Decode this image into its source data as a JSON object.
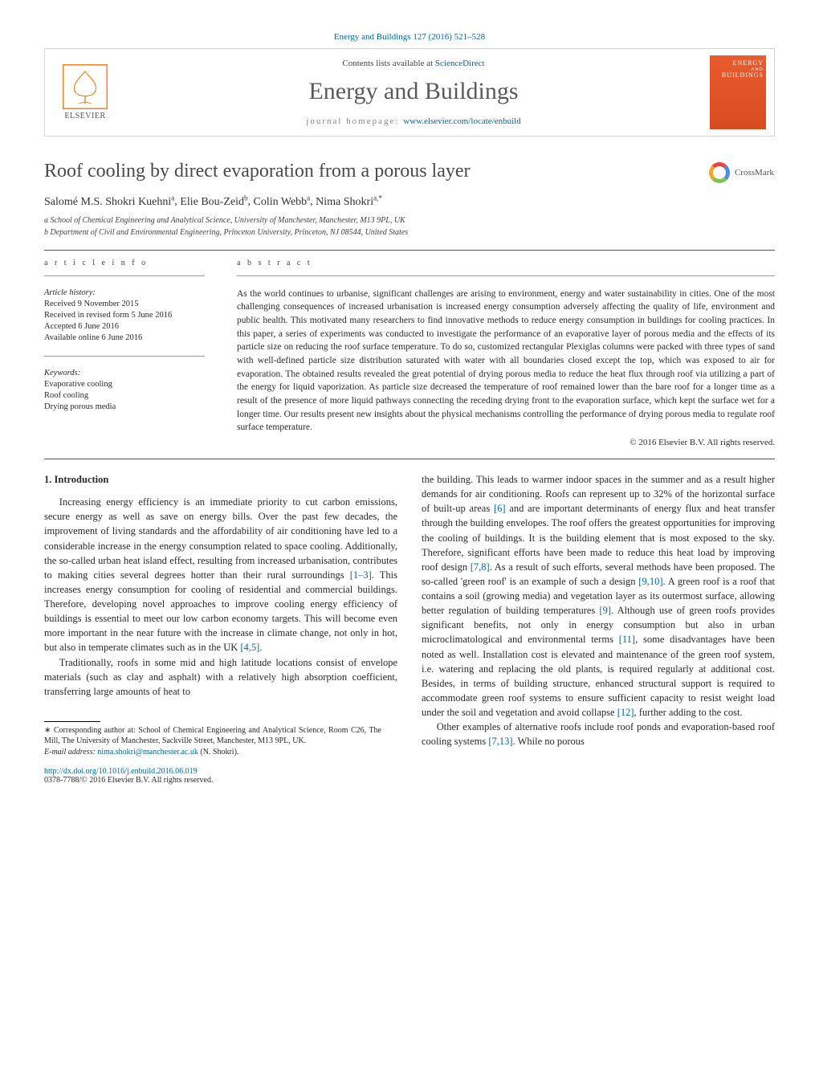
{
  "header": {
    "citation_line": "Energy and Buildings 127 (2016) 521–528",
    "contents_prefix": "Contents lists available at ",
    "contents_link": "ScienceDirect",
    "journal_name": "Energy and Buildings",
    "homepage_label": "journal homepage: ",
    "homepage_url": "www.elsevier.com/locate/enbuild",
    "elsevier_word": "ELSEVIER",
    "cover_brand_top": "ENERGY",
    "cover_brand_bottom": "BUILDINGS",
    "crossmark_label": "CrossMark"
  },
  "article": {
    "title": "Roof cooling by direct evaporation from a porous layer",
    "authors_html": "Salomé M.S. Shokri Kuehni",
    "authors": [
      {
        "name": "Salomé M.S. Shokri Kuehni",
        "sup": "a"
      },
      {
        "name": "Elie Bou-Zeid",
        "sup": "b"
      },
      {
        "name": "Colin Webb",
        "sup": "a"
      },
      {
        "name": "Nima Shokri",
        "sup": "a,*"
      }
    ],
    "affiliations": [
      "a School of Chemical Engineering and Analytical Science, University of Manchester, Manchester, M13 9PL, UK",
      "b Department of Civil and Environmental Engineering, Princeton University, Princeton, NJ 08544, United States"
    ]
  },
  "info": {
    "label_info": "a r t i c l e   i n f o",
    "history_heading": "Article history:",
    "history": [
      "Received 9 November 2015",
      "Received in revised form 5 June 2016",
      "Accepted 6 June 2016",
      "Available online 6 June 2016"
    ],
    "keywords_heading": "Keywords:",
    "keywords": [
      "Evaporative cooling",
      "Roof cooling",
      "Drying porous media"
    ]
  },
  "abstract": {
    "label": "a b s t r a c t",
    "text": "As the world continues to urbanise, significant challenges are arising to environment, energy and water sustainability in cities. One of the most challenging consequences of increased urbanisation is increased energy consumption adversely affecting the quality of life, environment and public health. This motivated many researchers to find innovative methods to reduce energy consumption in buildings for cooling practices. In this paper, a series of experiments was conducted to investigate the performance of an evaporative layer of porous media and the effects of its particle size on reducing the roof surface temperature. To do so, customized rectangular Plexiglas columns were packed with three types of sand with well-defined particle size distribution saturated with water with all boundaries closed except the top, which was exposed to air for evaporation. The obtained results revealed the great potential of drying porous media to reduce the heat flux through roof via utilizing a part of the energy for liquid vaporization. As particle size decreased the temperature of roof remained lower than the bare roof for a longer time as a result of the presence of more liquid pathways connecting the receding drying front to the evaporation surface, which kept the surface wet for a longer time. Our results present new insights about the physical mechanisms controlling the performance of drying porous media to regulate roof surface temperature.",
    "copyright": "© 2016 Elsevier B.V. All rights reserved."
  },
  "body": {
    "sec1_heading": "1.  Introduction",
    "para1": "Increasing energy efficiency is an immediate priority to cut carbon emissions, secure energy as well as save on energy bills. Over the past few decades, the improvement of living standards and the affordability of air conditioning have led to a considerable increase in the energy consumption related to space cooling. Additionally, the so-called urban heat island effect, resulting from increased urbanisation, contributes to making cities several degrees hotter than their rural surroundings ",
    "ref1": "[1–3]",
    "para1b": ". This increases energy consumption for cooling of residential and commercial buildings. Therefore, developing novel approaches to improve cooling energy efficiency of buildings is essential to meet our low carbon economy targets. This will become even more important in the near future with the increase in climate change, not only in hot, but also in temperate climates such as in the UK ",
    "ref2": "[4,5]",
    "para1c": ".",
    "para2": "Traditionally, roofs in some mid and high latitude locations consist of envelope materials (such as clay and asphalt) with a relatively high absorption coefficient, transferring large amounts of heat to ",
    "para3": "the building. This leads to warmer indoor spaces in the summer and as a result higher demands for air conditioning. Roofs can represent up to 32% of the horizontal surface of built-up areas ",
    "ref3": "[6]",
    "para3b": " and are important determinants of energy flux and heat transfer through the building envelopes. The roof offers the greatest opportunities for improving the cooling of buildings. It is the building element that is most exposed to the sky. Therefore, significant efforts have been made to reduce this heat load by improving roof design ",
    "ref4": "[7,8]",
    "para3c": ". As a result of such efforts, several methods have been proposed. The so-called 'green roof' is an example of such a design ",
    "ref5": "[9,10]",
    "para3d": ". A green roof is a roof that contains a soil (growing media) and vegetation layer as its outermost surface, allowing better regulation of building temperatures ",
    "ref6": "[9]",
    "para3e": ". Although use of green roofs provides significant benefits, not only in energy consumption but also in urban microclimatological and environmental terms ",
    "ref7": "[11]",
    "para3f": ", some disadvantages have been noted as well. Installation cost is elevated and maintenance of the green roof system, i.e. watering and replacing the old plants, is required regularly at additional cost. Besides, in terms of building structure, enhanced structural support is required to accommodate green roof systems to ensure sufficient capacity to resist weight load under the soil and vegetation and avoid collapse ",
    "ref8": "[12]",
    "para3g": ", further adding to the cost.",
    "para4": "Other examples of alternative roofs include roof ponds and evaporation-based roof cooling systems ",
    "ref9": "[7,13]",
    "para4b": ". While no porous"
  },
  "footnotes": {
    "corr_sym": "∗",
    "corr_text": " Corresponding author at: School of Chemical Engineering and Analytical Science, Room C26, The Mill, The University of Manchester, Sackville Street, Manchester, M13 9PL, UK.",
    "email_label": "E-mail address: ",
    "email": "nima.shokri@manchester.ac.uk",
    "email_who": " (N. Shokri)."
  },
  "doi": {
    "url": "http://dx.doi.org/10.1016/j.enbuild.2016.06.019",
    "issn_line": "0378-7788/© 2016 Elsevier B.V. All rights reserved."
  },
  "colors": {
    "link": "#0066aa",
    "elsevier_orange": "#f58220",
    "cover_bg": "#e85c2f",
    "text": "#2a2a2a",
    "rule": "#555555"
  }
}
